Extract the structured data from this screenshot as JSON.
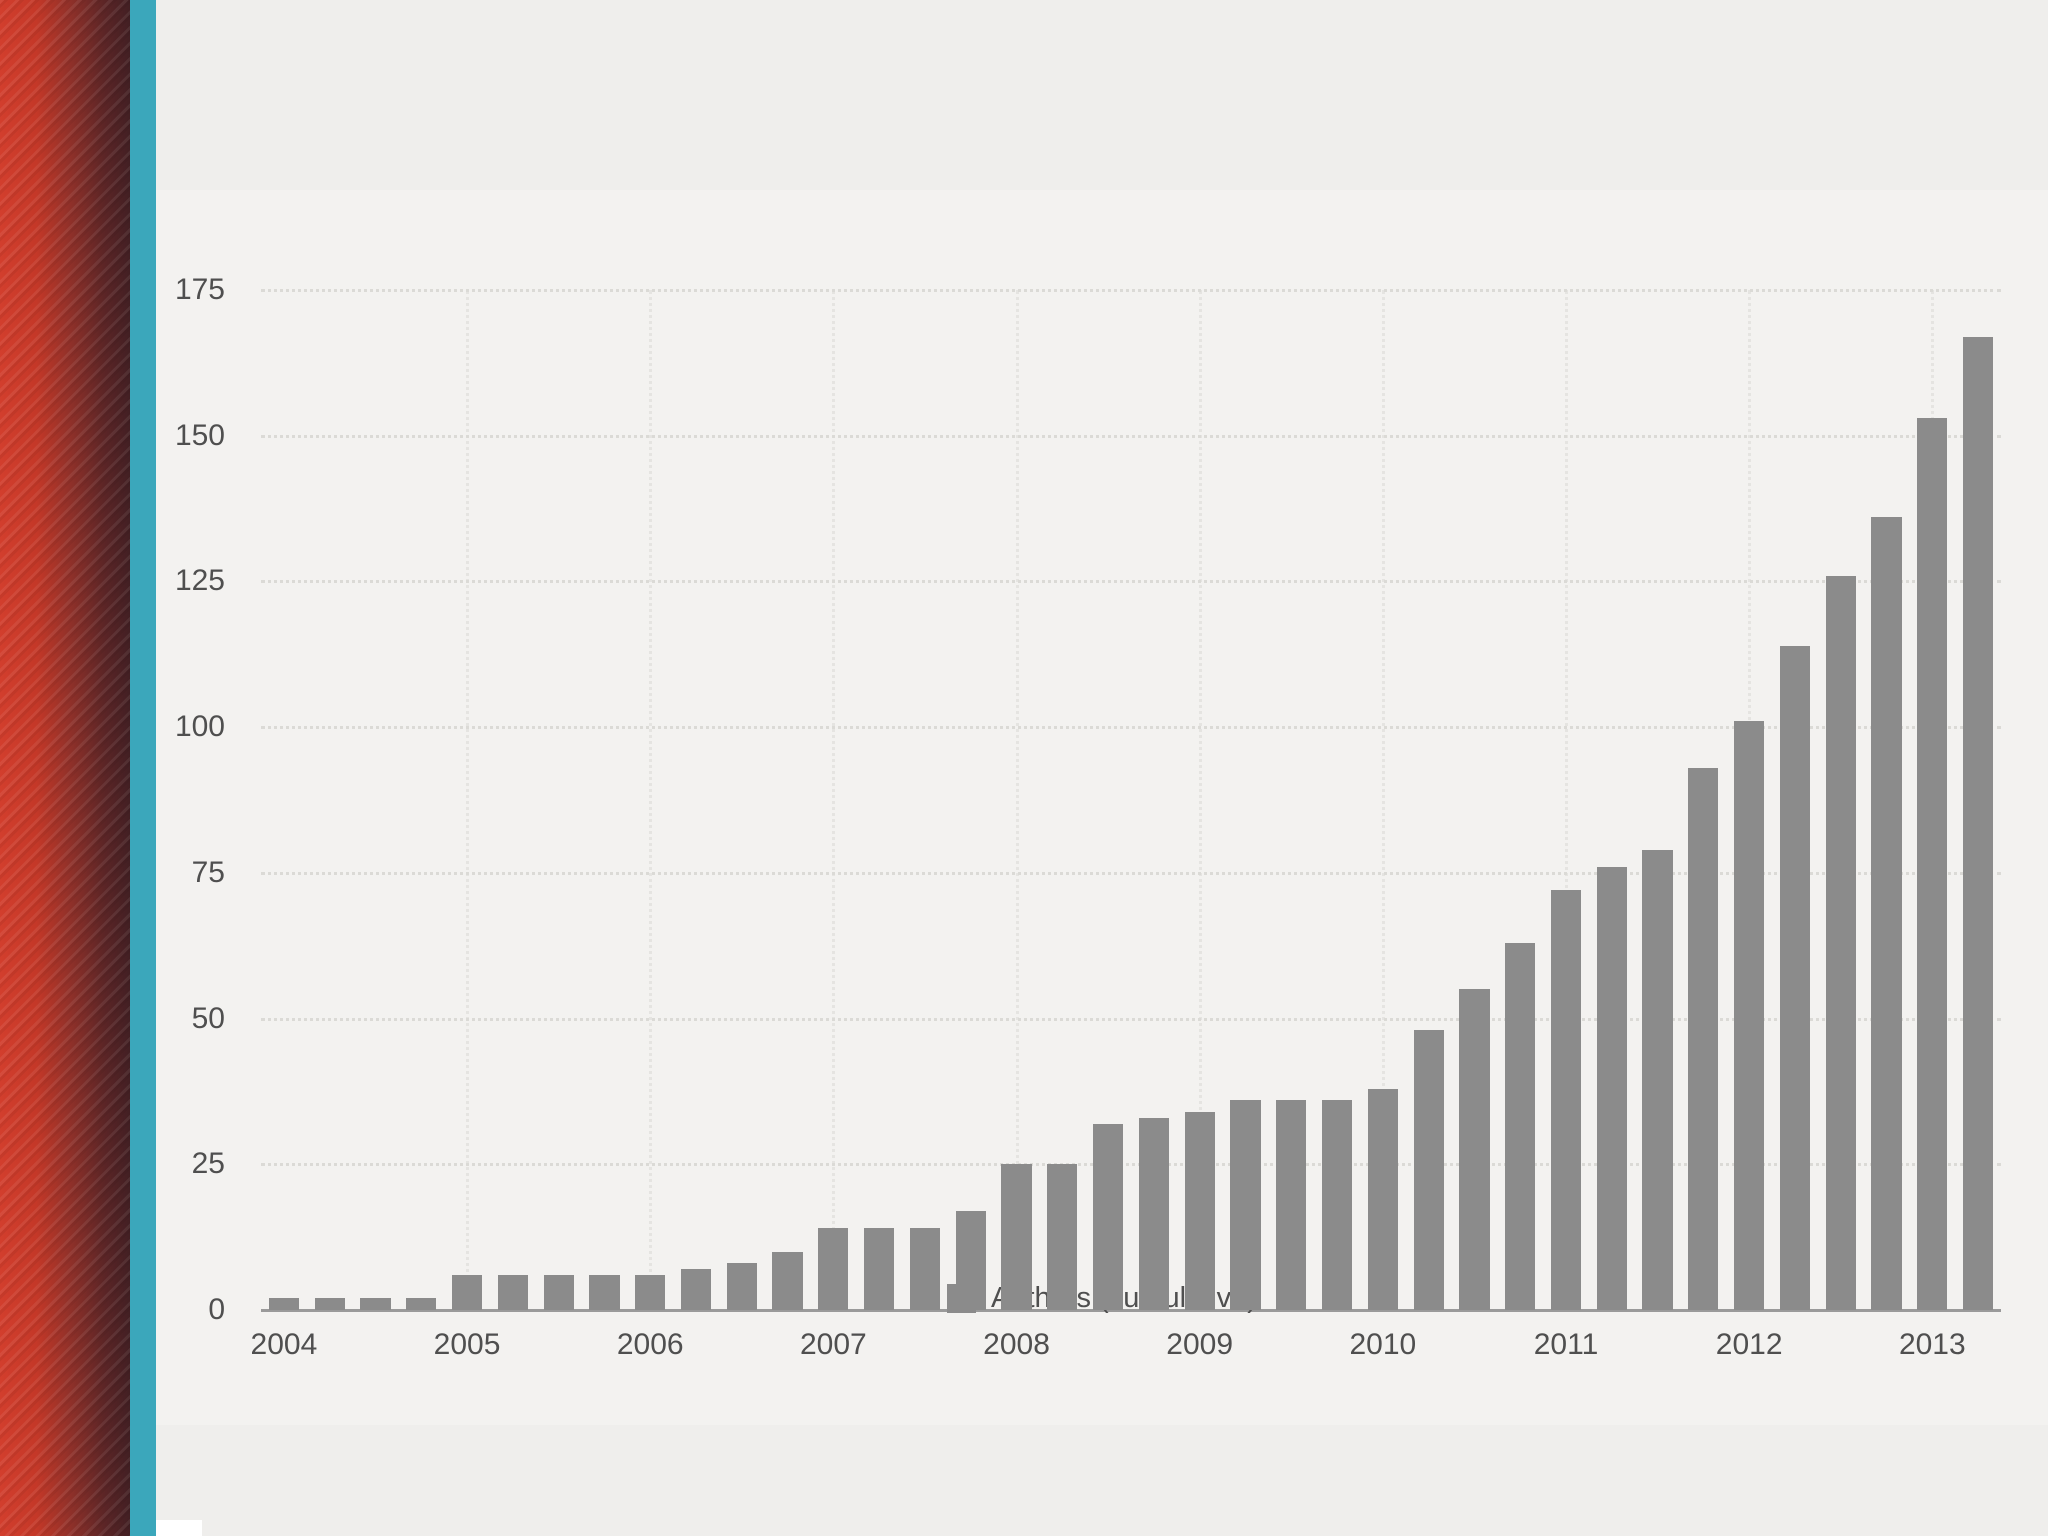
{
  "page": {
    "background": "#efeeec",
    "panel_background": "#f3f2f0"
  },
  "decor": {
    "red_band_color": "#d23e2d",
    "maroon_band_color": "#421f23",
    "teal_band_color": "#3ba7bb"
  },
  "chart": {
    "legend_label": "Authors (cumulative)",
    "bar_color": "#8b8b8b",
    "grid_color": "#dbdad6",
    "axis_line_color": "#9a9a9a",
    "text_color": "#4f4f4f",
    "y_ticks": [
      0,
      25,
      50,
      75,
      100,
      125,
      150,
      175
    ],
    "years": [
      "2004",
      "2005",
      "2006",
      "2007",
      "2008",
      "2009",
      "2010",
      "2011",
      "2012",
      "2013"
    ],
    "bars_per_year": 4
  },
  "chart_data": {
    "type": "bar",
    "title": "",
    "xlabel": "",
    "ylabel": "",
    "legend": [
      "Authors (cumulative)"
    ],
    "legend_position": "bottom",
    "grid": "horizontal-dotted",
    "ylim": [
      0,
      175
    ],
    "y_ticks": [
      0,
      25,
      50,
      75,
      100,
      125,
      150,
      175
    ],
    "x": [
      "2004 Q1",
      "2004 Q2",
      "2004 Q3",
      "2004 Q4",
      "2005 Q1",
      "2005 Q2",
      "2005 Q3",
      "2005 Q4",
      "2006 Q1",
      "2006 Q2",
      "2006 Q3",
      "2006 Q4",
      "2007 Q1",
      "2007 Q2",
      "2007 Q3",
      "2007 Q4",
      "2008 Q1",
      "2008 Q2",
      "2008 Q3",
      "2008 Q4",
      "2009 Q1",
      "2009 Q2",
      "2009 Q3",
      "2009 Q4",
      "2010 Q1",
      "2010 Q2",
      "2010 Q3",
      "2010 Q4",
      "2011 Q1",
      "2011 Q2",
      "2011 Q3",
      "2011 Q4",
      "2012 Q1",
      "2012 Q2",
      "2012 Q3",
      "2012 Q4",
      "2013 Q1",
      "2013 Q2"
    ],
    "values": [
      2,
      2,
      2,
      2,
      6,
      6,
      6,
      6,
      6,
      7,
      8,
      10,
      14,
      14,
      14,
      17,
      25,
      25,
      32,
      33,
      34,
      36,
      36,
      36,
      38,
      48,
      55,
      63,
      72,
      76,
      79,
      93,
      101,
      114,
      126,
      136,
      153,
      167
    ]
  }
}
